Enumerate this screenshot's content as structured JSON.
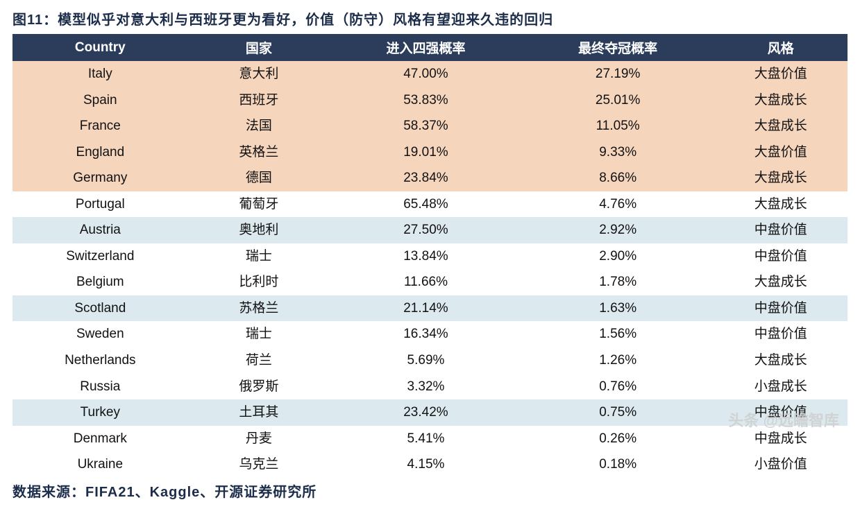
{
  "figure": {
    "title": "图11：模型似乎对意大利与西班牙更为看好，价值（防守）风格有望迎来久违的回归",
    "source": "数据来源：FIFA21、Kaggle、开源证券研究所",
    "watermark": "头条 @远瞻智库"
  },
  "table": {
    "headers": {
      "country_en": "Country",
      "country_cn": "国家",
      "semi_prob": "进入四强概率",
      "champ_prob": "最终夺冠概率",
      "style": "风格"
    },
    "row_colors": {
      "header": "#2b3d5b",
      "peach": "#f6d5bd",
      "white": "#ffffff",
      "lightblue": "#dceaf0"
    },
    "rows": [
      {
        "country_en": "Italy",
        "country_cn": "意大利",
        "semi": "47.00%",
        "champ": "27.19%",
        "style": "大盘价值",
        "bg": "peach"
      },
      {
        "country_en": "Spain",
        "country_cn": "西班牙",
        "semi": "53.83%",
        "champ": "25.01%",
        "style": "大盘成长",
        "bg": "peach"
      },
      {
        "country_en": "France",
        "country_cn": "法国",
        "semi": "58.37%",
        "champ": "11.05%",
        "style": "大盘成长",
        "bg": "peach"
      },
      {
        "country_en": "England",
        "country_cn": "英格兰",
        "semi": "19.01%",
        "champ": "9.33%",
        "style": "大盘价值",
        "bg": "peach"
      },
      {
        "country_en": "Germany",
        "country_cn": "德国",
        "semi": "23.84%",
        "champ": "8.66%",
        "style": "大盘成长",
        "bg": "peach"
      },
      {
        "country_en": "Portugal",
        "country_cn": "葡萄牙",
        "semi": "65.48%",
        "champ": "4.76%",
        "style": "大盘成长",
        "bg": "white"
      },
      {
        "country_en": "Austria",
        "country_cn": "奥地利",
        "semi": "27.50%",
        "champ": "2.92%",
        "style": "中盘价值",
        "bg": "lightblue"
      },
      {
        "country_en": "Switzerland",
        "country_cn": "瑞士",
        "semi": "13.84%",
        "champ": "2.90%",
        "style": "中盘价值",
        "bg": "white"
      },
      {
        "country_en": "Belgium",
        "country_cn": "比利时",
        "semi": "11.66%",
        "champ": "1.78%",
        "style": "大盘成长",
        "bg": "white"
      },
      {
        "country_en": "Scotland",
        "country_cn": "苏格兰",
        "semi": "21.14%",
        "champ": "1.63%",
        "style": "中盘价值",
        "bg": "lightblue"
      },
      {
        "country_en": "Sweden",
        "country_cn": "瑞士",
        "semi": "16.34%",
        "champ": "1.56%",
        "style": "中盘价值",
        "bg": "white"
      },
      {
        "country_en": "Netherlands",
        "country_cn": "荷兰",
        "semi": "5.69%",
        "champ": "1.26%",
        "style": "大盘成长",
        "bg": "white"
      },
      {
        "country_en": "Russia",
        "country_cn": "俄罗斯",
        "semi": "3.32%",
        "champ": "0.76%",
        "style": "小盘成长",
        "bg": "white"
      },
      {
        "country_en": "Turkey",
        "country_cn": "土耳其",
        "semi": "23.42%",
        "champ": "0.75%",
        "style": "中盘价值",
        "bg": "lightblue"
      },
      {
        "country_en": "Denmark",
        "country_cn": "丹麦",
        "semi": "5.41%",
        "champ": "0.26%",
        "style": "中盘成长",
        "bg": "white"
      },
      {
        "country_en": "Ukraine",
        "country_cn": "乌克兰",
        "semi": "4.15%",
        "champ": "0.18%",
        "style": "小盘价值",
        "bg": "white"
      }
    ]
  }
}
